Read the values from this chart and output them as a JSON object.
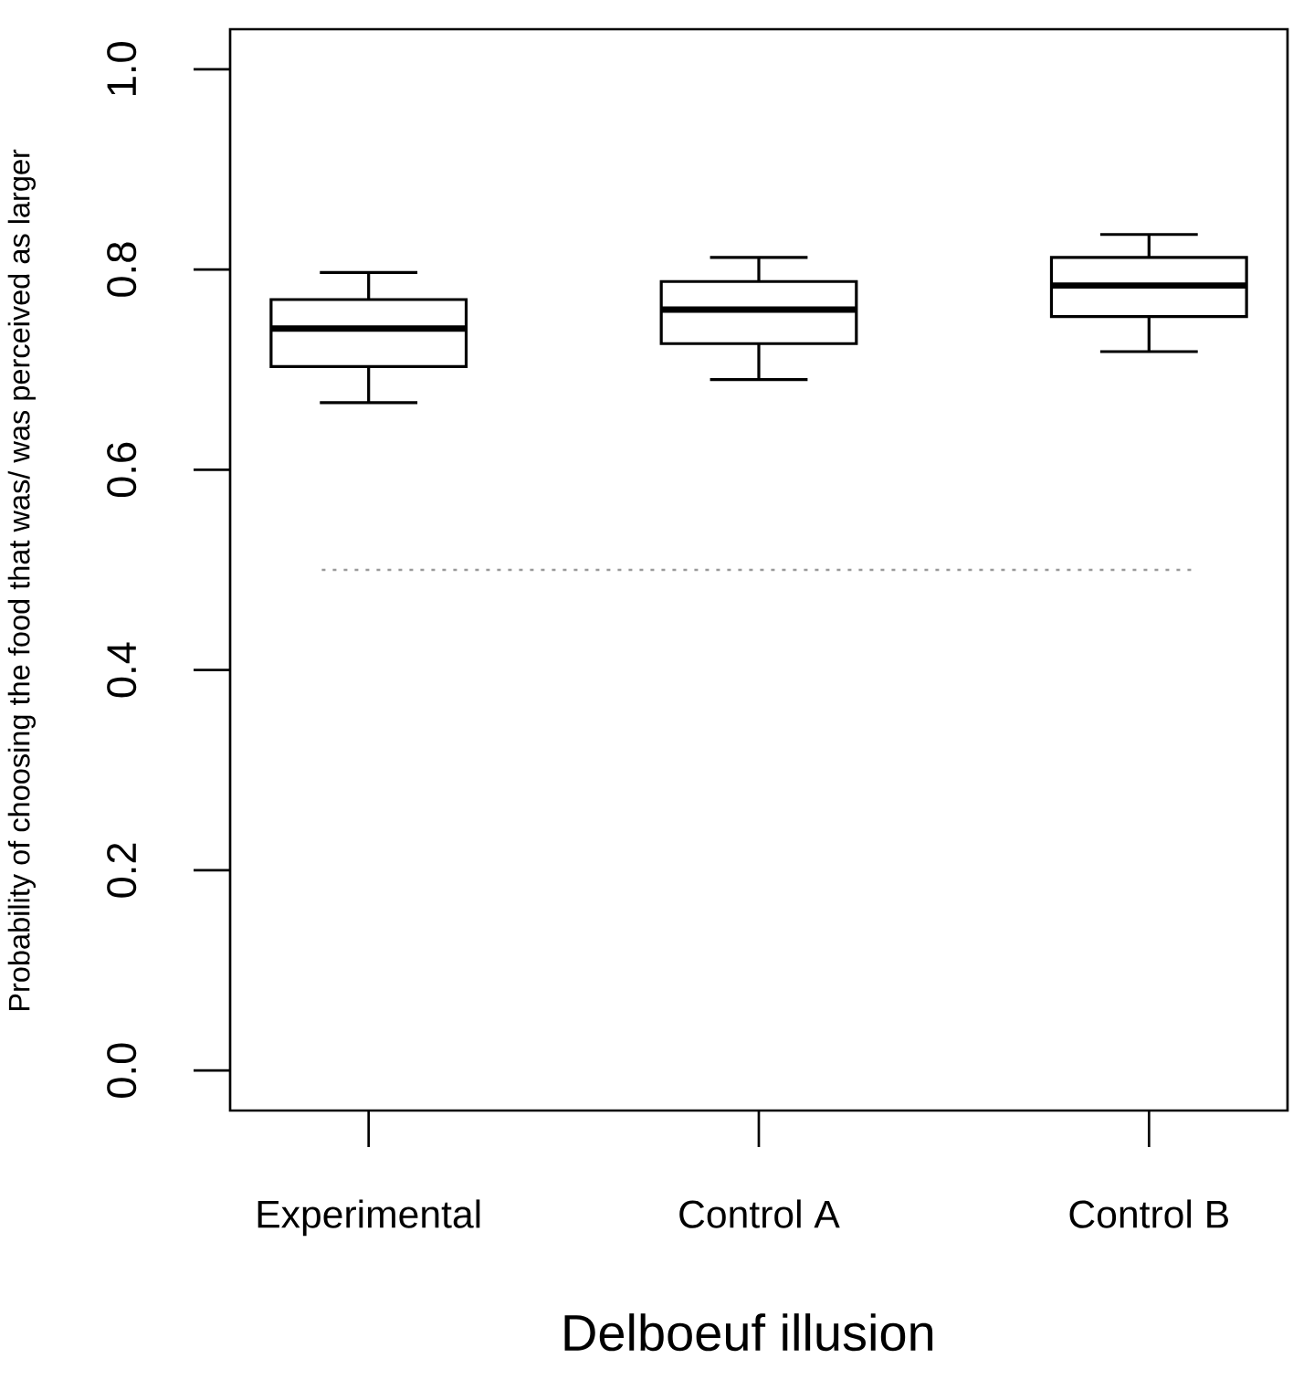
{
  "chart_data": {
    "type": "box",
    "xlabel": "Delboeuf illusion",
    "ylabel": "Probability of choosing the food that was/ was perceived as larger",
    "categories": [
      "Experimental",
      "Control A",
      "Control B"
    ],
    "boxes": [
      {
        "low": 0.667,
        "q1": 0.703,
        "median": 0.741,
        "q3": 0.77,
        "high": 0.797
      },
      {
        "low": 0.69,
        "q1": 0.726,
        "median": 0.76,
        "q3": 0.788,
        "high": 0.812
      },
      {
        "low": 0.718,
        "q1": 0.753,
        "median": 0.784,
        "q3": 0.812,
        "high": 0.835
      }
    ],
    "color": "#000000",
    "ylim": [
      -0.04,
      1.04
    ],
    "yticks": [
      {
        "value": 0,
        "label": "0.0"
      },
      {
        "value": 0.2,
        "label": "0.2"
      },
      {
        "value": 0.4,
        "label": "0.4"
      },
      {
        "value": 0.6,
        "label": "0.6"
      },
      {
        "value": 0.8,
        "label": "0.8"
      },
      {
        "value": 1.0,
        "label": "1.0"
      }
    ],
    "ref_lines": [
      {
        "axis": "y",
        "value": 0.5,
        "color": "#999999",
        "line_style": "dotted"
      }
    ],
    "grid": false
  }
}
